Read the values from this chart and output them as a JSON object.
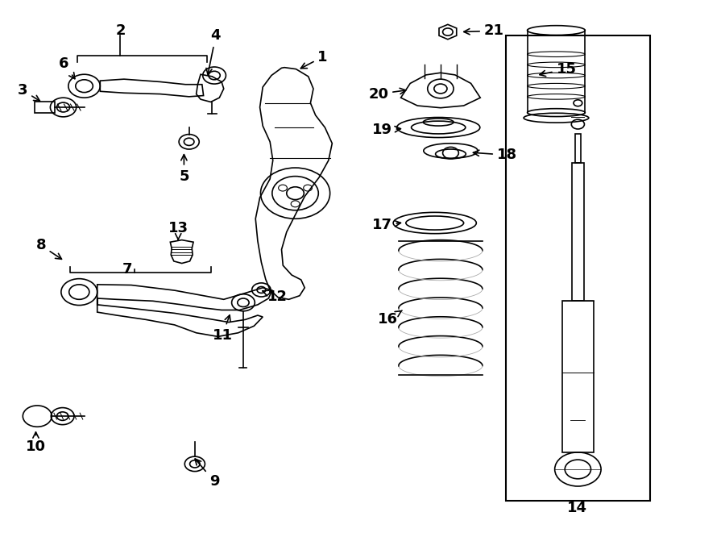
{
  "bg_color": "#ffffff",
  "line_color": "#000000",
  "label_fontsize": 13,
  "fig_width": 9.0,
  "fig_height": 6.61
}
